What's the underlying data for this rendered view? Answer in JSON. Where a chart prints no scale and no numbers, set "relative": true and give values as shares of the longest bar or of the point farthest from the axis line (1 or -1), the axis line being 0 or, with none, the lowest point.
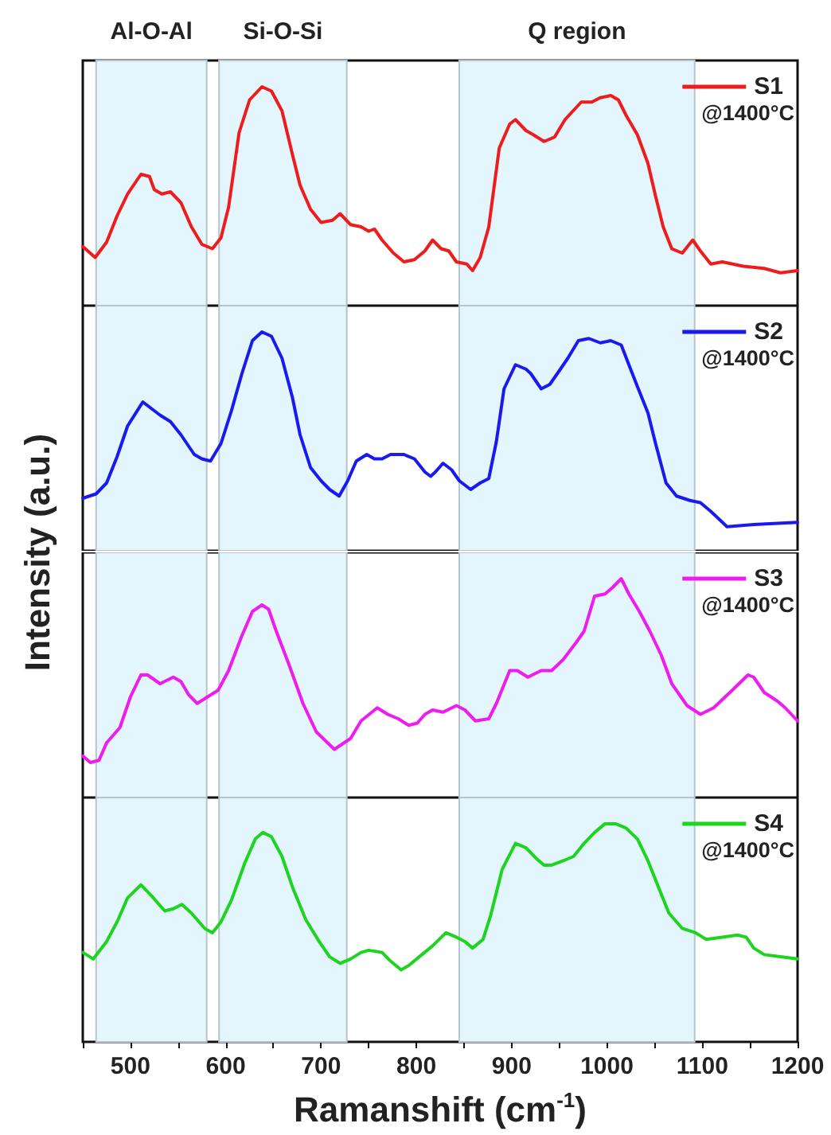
{
  "chart_data": [
    {
      "type": "line",
      "ylabel": "Intensity (a.u.)",
      "relative": true,
      "xlim": [
        450,
        1200
      ],
      "tick_labels": false,
      "legend": "top right",
      "marker": "none",
      "line_style": "solid",
      "grid": false,
      "bands": [
        {
          "axis": "x",
          "from": 464,
          "to": 580,
          "label": "Al-O-Al",
          "color": "#e3f5fd"
        },
        {
          "axis": "x",
          "from": 593,
          "to": 727,
          "label": "Si-O-Si",
          "color": "#e3f5fd"
        },
        {
          "axis": "x",
          "from": 845,
          "to": 1092,
          "label": "Q region",
          "color": "#e3f5fd"
        }
      ],
      "annotations": [
        "@1400°C"
      ],
      "x": [
        450,
        463,
        475,
        486,
        497,
        511,
        520,
        525,
        533,
        542,
        553,
        564,
        575,
        586,
        595,
        603,
        614,
        625,
        638,
        648,
        659,
        670,
        678,
        689,
        700,
        712,
        720,
        731,
        742,
        750,
        756,
        764,
        776,
        787,
        798,
        809,
        817,
        826,
        834,
        842,
        853,
        859,
        867,
        876,
        887,
        898,
        904,
        915,
        923,
        934,
        945,
        956,
        973,
        984,
        993,
        1004,
        1012,
        1020,
        1032,
        1043,
        1051,
        1059,
        1068,
        1079,
        1090,
        1098,
        1109,
        1121,
        1143,
        1165,
        1182,
        1200
      ],
      "series": [
        {
          "name": "S1",
          "color": "#ee1c1c",
          "values": [
            0.27,
            0.22,
            0.29,
            0.41,
            0.51,
            0.6,
            0.59,
            0.53,
            0.51,
            0.52,
            0.47,
            0.36,
            0.28,
            0.26,
            0.31,
            0.45,
            0.79,
            0.94,
            1.0,
            0.98,
            0.89,
            0.69,
            0.55,
            0.44,
            0.38,
            0.39,
            0.42,
            0.37,
            0.36,
            0.34,
            0.35,
            0.3,
            0.24,
            0.2,
            0.21,
            0.25,
            0.3,
            0.26,
            0.25,
            0.2,
            0.19,
            0.16,
            0.22,
            0.36,
            0.72,
            0.83,
            0.85,
            0.8,
            0.78,
            0.75,
            0.77,
            0.85,
            0.93,
            0.93,
            0.95,
            0.96,
            0.94,
            0.87,
            0.78,
            0.65,
            0.5,
            0.36,
            0.26,
            0.24,
            0.3,
            0.25,
            0.19,
            0.2,
            0.18,
            0.17,
            0.15,
            0.16
          ]
        }
      ]
    },
    {
      "type": "line",
      "relative": true,
      "xlim": [
        450,
        1200
      ],
      "tick_labels": false,
      "legend": "top right",
      "marker": "none",
      "line_style": "solid",
      "grid": false,
      "bands": [
        {
          "axis": "x",
          "from": 464,
          "to": 580,
          "color": "#e3f5fd"
        },
        {
          "axis": "x",
          "from": 593,
          "to": 727,
          "color": "#e3f5fd"
        },
        {
          "axis": "x",
          "from": 845,
          "to": 1092,
          "color": "#e3f5fd"
        }
      ],
      "annotations": [
        "@1400°C"
      ],
      "x": [
        450,
        464,
        475,
        486,
        497,
        513,
        522,
        531,
        542,
        553,
        567,
        575,
        584,
        595,
        606,
        617,
        628,
        638,
        648,
        659,
        670,
        678,
        689,
        700,
        709,
        719,
        728,
        737,
        748,
        756,
        764,
        773,
        787,
        798,
        809,
        815,
        820,
        828,
        837,
        845,
        857,
        867,
        876,
        884,
        892,
        904,
        915,
        920,
        931,
        940,
        948,
        959,
        970,
        981,
        993,
        1004,
        1015,
        1023,
        1032,
        1043,
        1051,
        1062,
        1073,
        1087,
        1098,
        1109,
        1126,
        1154,
        1200
      ],
      "series": [
        {
          "name": "S2",
          "color": "#1a1aee",
          "values": [
            0.24,
            0.26,
            0.31,
            0.43,
            0.57,
            0.68,
            0.65,
            0.62,
            0.59,
            0.53,
            0.44,
            0.42,
            0.41,
            0.49,
            0.64,
            0.81,
            0.96,
            1.0,
            0.98,
            0.88,
            0.7,
            0.53,
            0.38,
            0.32,
            0.28,
            0.25,
            0.32,
            0.41,
            0.44,
            0.42,
            0.42,
            0.44,
            0.44,
            0.42,
            0.36,
            0.34,
            0.36,
            0.4,
            0.37,
            0.32,
            0.28,
            0.31,
            0.33,
            0.5,
            0.74,
            0.85,
            0.83,
            0.81,
            0.74,
            0.76,
            0.81,
            0.88,
            0.96,
            0.97,
            0.95,
            0.96,
            0.94,
            0.85,
            0.75,
            0.63,
            0.49,
            0.31,
            0.25,
            0.23,
            0.22,
            0.18,
            0.11,
            0.12,
            0.13
          ]
        }
      ]
    },
    {
      "type": "line",
      "relative": true,
      "xlim": [
        450,
        1200
      ],
      "tick_labels": false,
      "legend": "top right",
      "marker": "none",
      "line_style": "solid",
      "grid": false,
      "bands": [
        {
          "axis": "x",
          "from": 464,
          "to": 580,
          "color": "#e3f5fd"
        },
        {
          "axis": "x",
          "from": 593,
          "to": 727,
          "color": "#e3f5fd"
        },
        {
          "axis": "x",
          "from": 845,
          "to": 1092,
          "color": "#e3f5fd"
        }
      ],
      "annotations": [
        "@1400°C"
      ],
      "x": [
        450,
        458,
        467,
        475,
        489,
        500,
        511,
        518,
        531,
        545,
        553,
        561,
        570,
        581,
        592,
        603,
        617,
        628,
        638,
        645,
        653,
        667,
        681,
        695,
        714,
        731,
        742,
        759,
        770,
        781,
        792,
        801,
        809,
        817,
        828,
        842,
        851,
        862,
        876,
        884,
        898,
        906,
        917,
        931,
        942,
        954,
        968,
        976,
        987,
        998,
        1006,
        1015,
        1023,
        1034,
        1045,
        1057,
        1068,
        1084,
        1098,
        1112,
        1129,
        1148,
        1154,
        1165,
        1179,
        1187,
        1200
      ],
      "series": [
        {
          "name": "S3",
          "color": "#ee1cee",
          "values": [
            0.19,
            0.16,
            0.17,
            0.25,
            0.32,
            0.46,
            0.56,
            0.56,
            0.52,
            0.55,
            0.53,
            0.47,
            0.43,
            0.46,
            0.49,
            0.58,
            0.74,
            0.85,
            0.88,
            0.86,
            0.76,
            0.6,
            0.43,
            0.3,
            0.22,
            0.27,
            0.35,
            0.41,
            0.38,
            0.36,
            0.33,
            0.34,
            0.38,
            0.4,
            0.39,
            0.42,
            0.4,
            0.35,
            0.36,
            0.43,
            0.58,
            0.58,
            0.55,
            0.58,
            0.58,
            0.63,
            0.71,
            0.76,
            0.92,
            0.93,
            0.96,
            1.0,
            0.93,
            0.85,
            0.76,
            0.65,
            0.52,
            0.42,
            0.38,
            0.41,
            0.48,
            0.56,
            0.55,
            0.48,
            0.44,
            0.41,
            0.35
          ]
        }
      ]
    },
    {
      "type": "line",
      "relative": true,
      "xlabel": "Ramanshift (cm$^{-1}$)",
      "xlim": [
        450,
        1200
      ],
      "xticks": [
        {
          "value": 450,
          "label": null
        },
        500,
        {
          "value": 550,
          "label": null
        },
        600,
        {
          "value": 650,
          "label": null
        },
        700,
        {
          "value": 750,
          "label": null
        },
        800,
        {
          "value": 850,
          "label": null
        },
        900,
        {
          "value": 950,
          "label": null
        },
        1000,
        {
          "value": 1050,
          "label": null
        },
        1100,
        {
          "value": 1150,
          "label": null
        },
        1200
      ],
      "tick_labels": "x",
      "legend": "top right",
      "marker": "none",
      "line_style": "solid",
      "grid": false,
      "bands": [
        {
          "axis": "x",
          "from": 464,
          "to": 580,
          "color": "#e3f5fd"
        },
        {
          "axis": "x",
          "from": 593,
          "to": 727,
          "color": "#e3f5fd"
        },
        {
          "axis": "x",
          "from": 845,
          "to": 1092,
          "color": "#e3f5fd"
        }
      ],
      "annotations": [
        "@1400°C"
      ],
      "x": [
        450,
        461,
        475,
        486,
        497,
        511,
        522,
        536,
        545,
        554,
        564,
        578,
        586,
        595,
        606,
        620,
        631,
        639,
        648,
        659,
        670,
        684,
        698,
        709,
        720,
        731,
        742,
        750,
        764,
        773,
        784,
        792,
        803,
        817,
        831,
        842,
        851,
        859,
        870,
        878,
        890,
        904,
        915,
        926,
        934,
        942,
        954,
        965,
        976,
        987,
        998,
        1009,
        1020,
        1032,
        1043,
        1054,
        1065,
        1079,
        1093,
        1104,
        1121,
        1137,
        1146,
        1154,
        1165,
        1182,
        1200
      ],
      "series": [
        {
          "name": "S4",
          "color": "#1ed41e",
          "values": [
            0.41,
            0.38,
            0.46,
            0.55,
            0.66,
            0.72,
            0.67,
            0.6,
            0.61,
            0.63,
            0.59,
            0.52,
            0.5,
            0.55,
            0.65,
            0.82,
            0.93,
            0.96,
            0.94,
            0.85,
            0.71,
            0.56,
            0.46,
            0.39,
            0.36,
            0.38,
            0.41,
            0.42,
            0.41,
            0.37,
            0.33,
            0.35,
            0.39,
            0.44,
            0.5,
            0.48,
            0.46,
            0.43,
            0.47,
            0.58,
            0.79,
            0.91,
            0.89,
            0.84,
            0.81,
            0.81,
            0.83,
            0.85,
            0.91,
            0.96,
            1.0,
            1.0,
            0.98,
            0.93,
            0.83,
            0.71,
            0.59,
            0.52,
            0.5,
            0.47,
            0.48,
            0.49,
            0.48,
            0.43,
            0.4,
            0.39,
            0.38
          ]
        }
      ]
    }
  ]
}
